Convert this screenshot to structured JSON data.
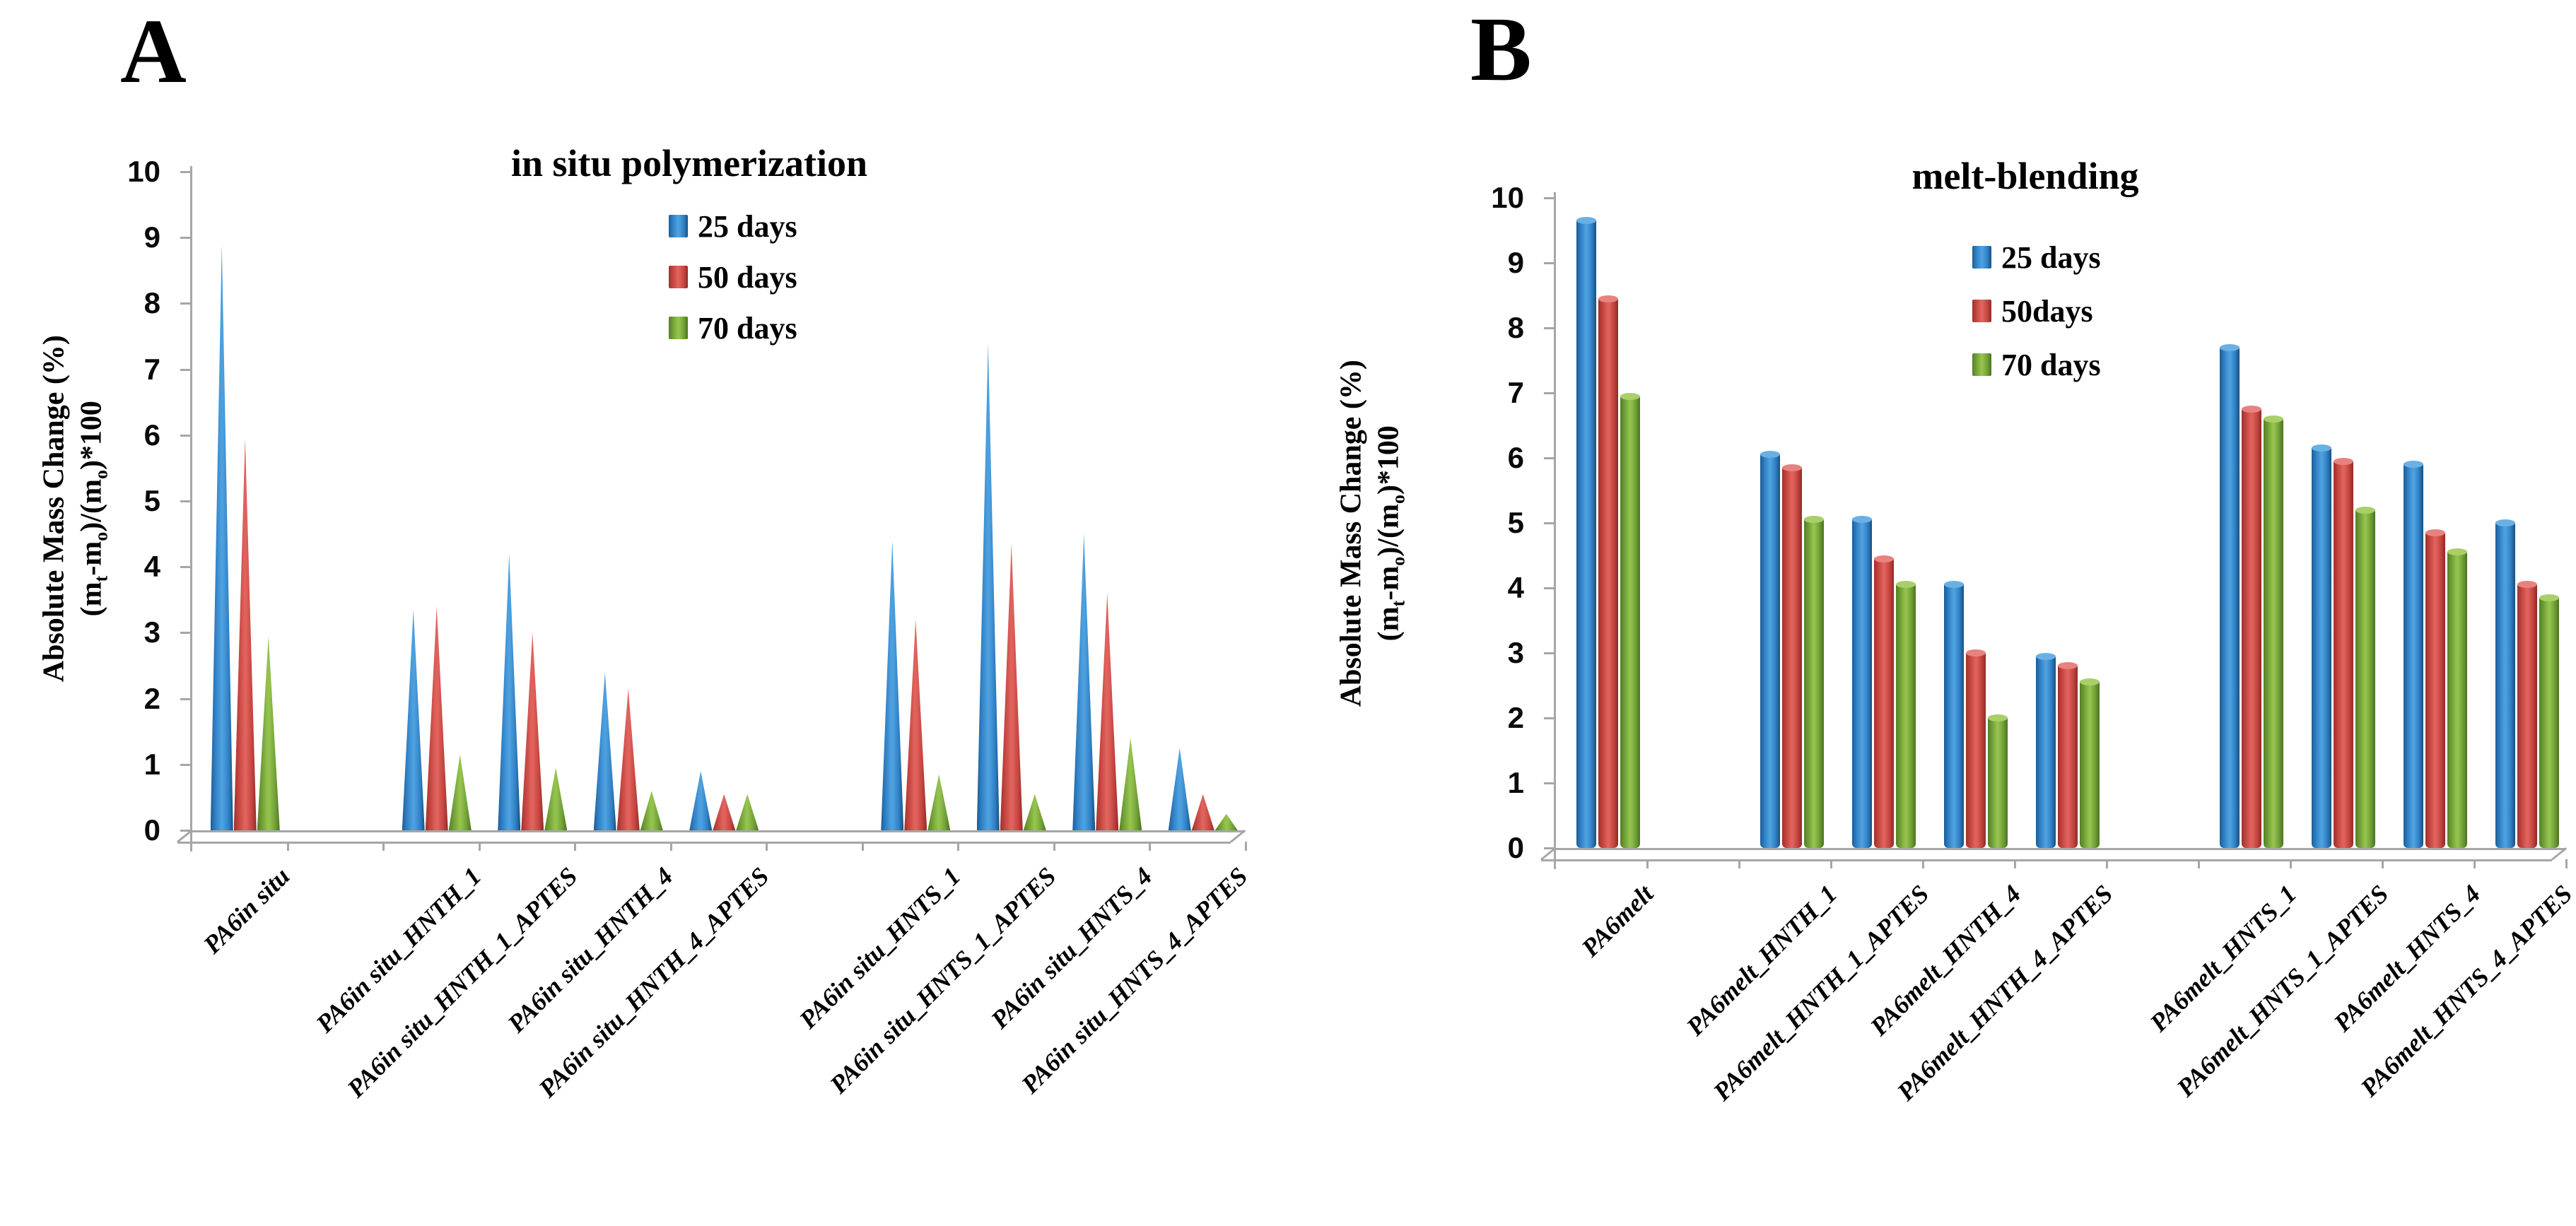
{
  "colors": {
    "series_blue": "#2f7fc4",
    "series_red": "#c4443f",
    "series_green": "#6f9f35",
    "axis_gray": "#a6a6a6",
    "background": "#ffffff",
    "text": "#000000"
  },
  "chart_data": [
    {
      "panel_letter": "A",
      "type": "bar",
      "style": "pyramid",
      "title": "in situ polymerization",
      "ylabel_line1": "Absolute Mass Change (%)",
      "ylabel_line2_parts": [
        "(m",
        "t",
        "-m",
        "o",
        ")/(m",
        "o",
        ")*100"
      ],
      "ylim": [
        0,
        10
      ],
      "ytick_step": 1,
      "grid": false,
      "legend_position": "top-center-inside",
      "categories": [
        "PA6in situ",
        "PA6in situ_HNTH_1",
        "PA6in situ_HNTH_1_APTES",
        "PA6in situ_HNTH_4",
        "PA6in situ_HNTH_4_APTES",
        "PA6in situ_HNTS_1",
        "PA6in situ_HNTS_1_APTES",
        "PA6in situ_HNTS_4",
        "PA6in situ_HNTS_4_APTES"
      ],
      "slot_indices": [
        0,
        2,
        3,
        4,
        5,
        7,
        8,
        9,
        10
      ],
      "series": [
        {
          "name": "25 days",
          "color": "#2f7fc4",
          "values": [
            8.9,
            3.35,
            4.2,
            2.4,
            0.9,
            4.4,
            7.4,
            4.5,
            1.25
          ]
        },
        {
          "name": "50 days",
          "color": "#c4443f",
          "values": [
            5.95,
            3.4,
            3.0,
            2.15,
            0.55,
            3.2,
            4.35,
            3.6,
            0.55
          ]
        },
        {
          "name": "70 days",
          "color": "#6f9f35",
          "values": [
            2.95,
            1.15,
            0.95,
            0.6,
            0.55,
            0.85,
            0.55,
            1.4,
            0.25
          ]
        }
      ]
    },
    {
      "panel_letter": "B",
      "type": "bar",
      "style": "cylinder",
      "title": "melt-blending",
      "ylabel_line1": "Absolute Mass Change (%)",
      "ylabel_line2_parts": [
        "(m",
        "t",
        "-m",
        "o",
        ")/(m",
        "o",
        ")*100"
      ],
      "ylim": [
        0,
        10
      ],
      "ytick_step": 1,
      "grid": false,
      "legend_position": "top-center-inside",
      "categories": [
        "PA6melt",
        "PA6melt_HNTH_1",
        "PA6melt_HNTH_1_APTES",
        "PA6melt_HNTH_4",
        "PA6melt_HNTH_4_APTES",
        "PA6melt_HNTS_1",
        "PA6melt_HNTS_1_APTES",
        "PA6melt_HNTS_4",
        "PA6melt_HNTS_4_APTES"
      ],
      "slot_indices": [
        0,
        2,
        3,
        4,
        5,
        7,
        8,
        9,
        10
      ],
      "series": [
        {
          "name": "25 days",
          "color": "#2f7fc4",
          "values": [
            9.65,
            6.05,
            5.05,
            4.05,
            2.95,
            7.7,
            6.15,
            5.9,
            5.0
          ]
        },
        {
          "name": "50days",
          "color": "#c4443f",
          "values": [
            8.45,
            5.85,
            4.45,
            3.0,
            2.8,
            6.75,
            5.95,
            4.85,
            4.05
          ]
        },
        {
          "name": "70 days",
          "color": "#6f9f35",
          "values": [
            6.95,
            5.05,
            4.05,
            2.0,
            2.55,
            6.6,
            5.2,
            4.55,
            3.85
          ]
        }
      ]
    }
  ]
}
